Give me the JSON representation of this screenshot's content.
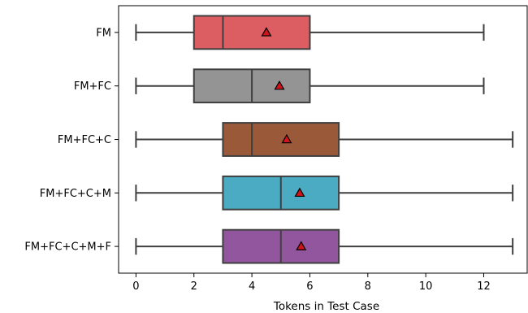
{
  "chart_data": {
    "type": "boxplot",
    "orientation": "horizontal",
    "xlabel": "Tokens in Test Case",
    "xlim": [
      -0.6,
      13.5
    ],
    "xticks": [
      0,
      2,
      4,
      6,
      8,
      10,
      12
    ],
    "grid": false,
    "series": [
      {
        "category": "FM",
        "color": "#dd5e62",
        "min": 0,
        "q1": 2,
        "median": 3,
        "q3": 6,
        "max": 12,
        "mean": 4.5
      },
      {
        "category": "FM+FC",
        "color": "#949494",
        "min": 0,
        "q1": 2,
        "median": 4,
        "q3": 6,
        "max": 12,
        "mean": 4.95
      },
      {
        "category": "FM+FC+C",
        "color": "#9a5a3a",
        "min": 0,
        "q1": 3,
        "median": 4,
        "q3": 7,
        "max": 13,
        "mean": 5.2
      },
      {
        "category": "FM+FC+C+M",
        "color": "#4aabc2",
        "min": 0,
        "q1": 3,
        "median": 5,
        "q3": 7,
        "max": 13,
        "mean": 5.65
      },
      {
        "category": "FM+FC+C+M+F",
        "color": "#92569e",
        "min": 0,
        "q1": 3,
        "median": 5,
        "q3": 7,
        "max": 13,
        "mean": 5.7
      }
    ],
    "line_color": "#3f3f3f",
    "mean_marker_color": "#d0141a"
  }
}
